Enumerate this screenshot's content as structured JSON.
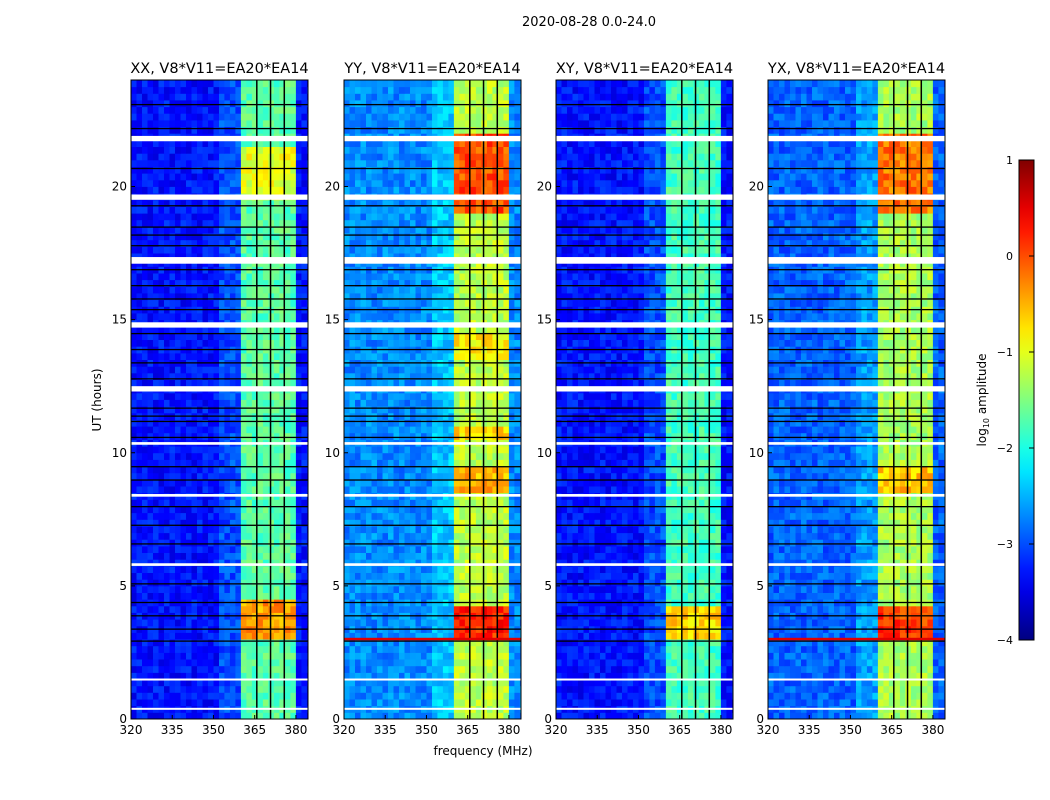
{
  "chart_data": {
    "type": "heatmap",
    "title": "2020-08-28 0.0-24.0",
    "xlabel": "frequency (MHz)",
    "ylabel": "UT (hours)",
    "xlim": [
      320,
      384.4
    ],
    "ylim": [
      0,
      24
    ],
    "xticks": [
      "320",
      "335",
      "350",
      "365",
      "380"
    ],
    "xtick_values": [
      320,
      335,
      350,
      365,
      380
    ],
    "yticks": [
      "0",
      "5",
      "10",
      "15",
      "20"
    ],
    "ytick_values": [
      0,
      5,
      10,
      15,
      20
    ],
    "colorbar": {
      "label_main": "log",
      "label_sub": "10",
      "label_tail": " amplitude",
      "range": [
        -4,
        1
      ],
      "ticks": [
        "−4",
        "−3",
        "−2",
        "−1",
        "0",
        "1"
      ],
      "tick_values": [
        -4,
        -3,
        -2,
        -1,
        0,
        1
      ],
      "colormap": "jet"
    },
    "rfi_band_mhz": [
      361,
      380
    ],
    "band_gaps_mhz": [
      365.5,
      370.5,
      375.5
    ],
    "flagged_white_hours": [
      [
        21.7,
        21.9
      ],
      [
        19.5,
        19.7
      ],
      [
        17.1,
        17.35
      ],
      [
        14.7,
        14.9
      ],
      [
        12.3,
        12.5
      ],
      [
        10.3,
        10.4
      ],
      [
        8.35,
        8.45
      ],
      [
        5.75,
        5.85
      ],
      [
        1.45,
        1.52
      ],
      [
        0.35,
        0.42
      ]
    ],
    "flagged_black_hours": [
      23.1,
      22.2,
      20.7,
      19.3,
      18.5,
      18.2,
      17.8,
      16.9,
      16.3,
      15.8,
      15.4,
      14.5,
      13.9,
      13.4,
      12.8,
      11.7,
      11.4,
      11.2,
      10.6,
      9.5,
      9.0,
      8.0,
      7.3,
      6.6,
      5.1,
      4.4,
      3.9,
      3.4,
      2.95
    ],
    "panels": [
      {
        "title": "XX, V8*V11=EA20*EA14",
        "base": -3.3,
        "band": -1.7,
        "red_line": false,
        "hotspots": [
          [
            3.0,
            4.5,
            -0.4
          ],
          [
            19.5,
            21.5,
            -1.0
          ]
        ]
      },
      {
        "title": "YY, V8*V11=EA20*EA14",
        "base": -2.7,
        "band": -1.2,
        "red_line": true,
        "hotspots": [
          [
            19.0,
            22.0,
            0.0
          ],
          [
            3.0,
            4.3,
            0.2
          ],
          [
            8.5,
            9.6,
            -0.5
          ],
          [
            13.5,
            14.5,
            -0.8
          ],
          [
            10.5,
            11.0,
            -0.7
          ]
        ]
      },
      {
        "title": "XY, V8*V11=EA20*EA14",
        "base": -3.3,
        "band": -1.8,
        "red_line": false,
        "hotspots": [
          [
            3.0,
            4.3,
            -0.7
          ]
        ]
      },
      {
        "title": "YX, V8*V11=EA20*EA14",
        "base": -2.9,
        "band": -1.3,
        "red_line": true,
        "hotspots": [
          [
            19.0,
            22.0,
            -0.2
          ],
          [
            3.0,
            4.3,
            0.1
          ],
          [
            8.5,
            9.6,
            -0.6
          ]
        ]
      }
    ]
  }
}
